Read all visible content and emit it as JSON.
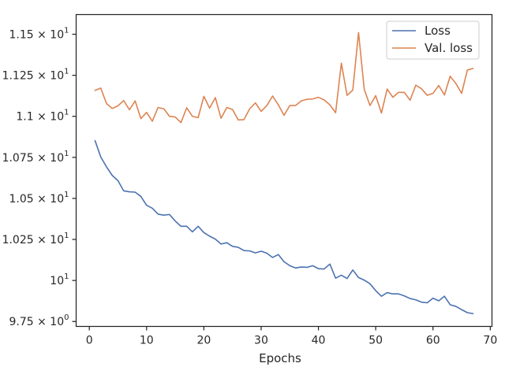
{
  "chart_data": {
    "type": "line",
    "xlabel": "Epochs",
    "ylabel": "",
    "xlim": [
      -2.3,
      70.3
    ],
    "ylim": [
      9.72,
      11.62
    ],
    "x_ticks": [
      0,
      10,
      20,
      30,
      40,
      50,
      60,
      70
    ],
    "x_tick_labels": [
      "0",
      "10",
      "20",
      "30",
      "40",
      "50",
      "60",
      "70"
    ],
    "y_ticks": [
      9.75,
      10.0,
      10.25,
      10.5,
      10.75,
      11.0,
      11.25,
      11.5
    ],
    "y_tick_labels": [
      {
        "mant": "9.75",
        "base": "10",
        "exp": "0"
      },
      {
        "mant": "",
        "base": "10",
        "exp": "1"
      },
      {
        "mant": "1.025",
        "base": "10",
        "exp": "1"
      },
      {
        "mant": "1.05",
        "base": "10",
        "exp": "1"
      },
      {
        "mant": "1.075",
        "base": "10",
        "exp": "1"
      },
      {
        "mant": "1.1",
        "base": "10",
        "exp": "1"
      },
      {
        "mant": "1.125",
        "base": "10",
        "exp": "1"
      },
      {
        "mant": "1.15",
        "base": "10",
        "exp": "1"
      }
    ],
    "legend_position": "top-right",
    "grid": false,
    "x": [
      1,
      2,
      3,
      4,
      5,
      6,
      7,
      8,
      9,
      10,
      11,
      12,
      13,
      14,
      15,
      16,
      17,
      18,
      19,
      20,
      21,
      22,
      23,
      24,
      25,
      26,
      27,
      28,
      29,
      30,
      31,
      32,
      33,
      34,
      35,
      36,
      37,
      38,
      39,
      40,
      41,
      42,
      43,
      44,
      45,
      46,
      47,
      48,
      49,
      50,
      51,
      52,
      53,
      54,
      55,
      56,
      57,
      58,
      59,
      60,
      61,
      62,
      63,
      64,
      65,
      66,
      67
    ],
    "series": [
      {
        "name": "Loss",
        "color": "#4c72b0",
        "values": [
          10.852,
          10.752,
          10.692,
          10.64,
          10.608,
          10.546,
          10.54,
          10.538,
          10.512,
          10.458,
          10.44,
          10.404,
          10.398,
          10.402,
          10.362,
          10.33,
          10.33,
          10.296,
          10.33,
          10.292,
          10.27,
          10.252,
          10.222,
          10.23,
          10.208,
          10.202,
          10.182,
          10.18,
          10.168,
          10.178,
          10.166,
          10.14,
          10.158,
          10.114,
          10.09,
          10.076,
          10.082,
          10.08,
          10.09,
          10.072,
          10.07,
          10.1,
          10.014,
          10.032,
          10.012,
          10.064,
          10.018,
          10.002,
          9.98,
          9.938,
          9.904,
          9.926,
          9.918,
          9.918,
          9.906,
          9.89,
          9.882,
          9.868,
          9.864,
          9.892,
          9.876,
          9.904,
          9.852,
          9.842,
          9.822,
          9.804,
          9.798
        ]
      },
      {
        "name": "Val. loss",
        "color": "#dd8452",
        "values": [
          11.158,
          11.172,
          11.078,
          11.048,
          11.064,
          11.096,
          11.04,
          11.094,
          10.986,
          11.024,
          10.97,
          11.054,
          11.046,
          11.0,
          10.996,
          10.962,
          11.052,
          11.0,
          10.992,
          11.122,
          11.05,
          11.114,
          10.988,
          11.054,
          11.042,
          10.978,
          10.98,
          11.046,
          11.082,
          11.03,
          11.066,
          11.124,
          11.07,
          11.006,
          11.066,
          11.066,
          11.094,
          11.104,
          11.106,
          11.116,
          11.1,
          11.07,
          11.022,
          11.324,
          11.128,
          11.16,
          11.51,
          11.164,
          11.066,
          11.126,
          11.02,
          11.166,
          11.116,
          11.146,
          11.146,
          11.098,
          11.19,
          11.168,
          11.128,
          11.14,
          11.188,
          11.13,
          11.244,
          11.2,
          11.14,
          11.282,
          11.292
        ]
      }
    ]
  }
}
